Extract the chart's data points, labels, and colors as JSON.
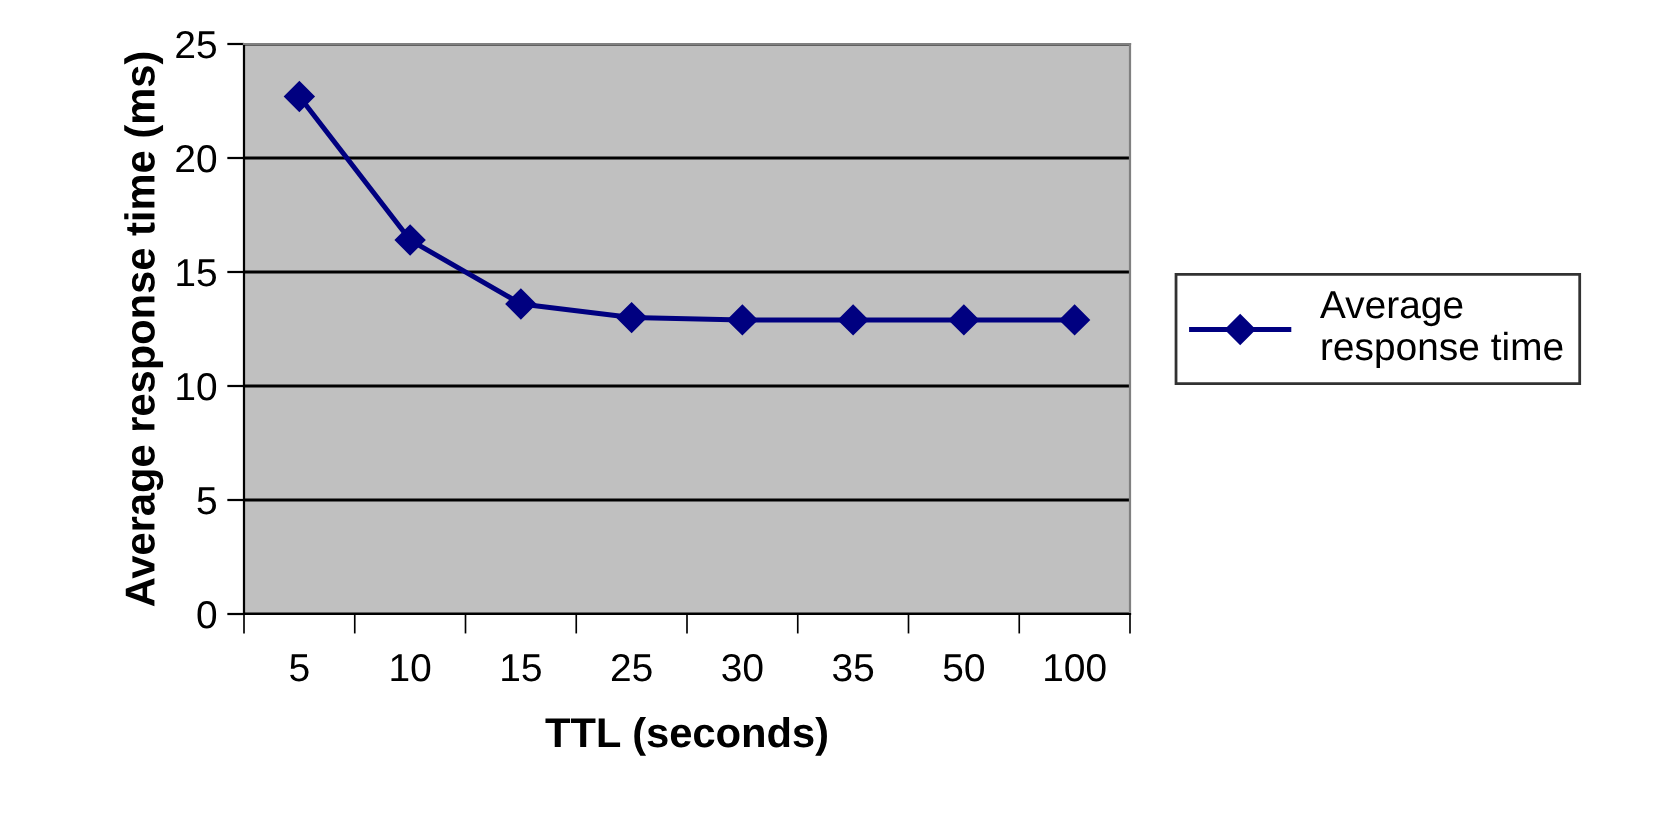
{
  "chart_data": {
    "type": "line",
    "xlabel": "TTL (seconds)",
    "ylabel": "Average response time (ms)",
    "categories": [
      "5",
      "10",
      "15",
      "25",
      "30",
      "35",
      "50",
      "100"
    ],
    "series": [
      {
        "name": "Average\nresponse time",
        "color": "#000080",
        "values": [
          22.7,
          16.4,
          13.6,
          13.0,
          12.9,
          12.9,
          12.9,
          12.9
        ]
      }
    ],
    "ylim": [
      0,
      25
    ],
    "yticks": [
      0,
      5,
      10,
      15,
      20,
      25
    ],
    "grid": "y",
    "legend": "right",
    "marker": "diamond",
    "line_style": "solid"
  }
}
